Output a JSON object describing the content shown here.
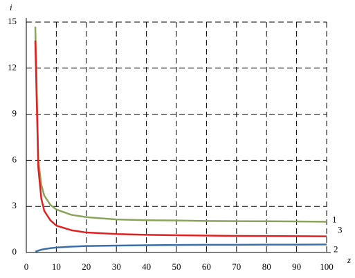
{
  "chart_data": {
    "type": "line",
    "x_label": "z",
    "y_label": "i",
    "x": [
      3,
      4,
      5,
      6,
      8,
      10,
      15,
      20,
      30,
      40,
      50,
      60,
      70,
      80,
      90,
      100
    ],
    "series": [
      {
        "name": "1",
        "color": "#8aa35a",
        "values": [
          14.7,
          6.0,
          4.4,
          3.7,
          3.1,
          2.8,
          2.45,
          2.3,
          2.15,
          2.1,
          2.08,
          2.05,
          2.04,
          2.03,
          2.02,
          2.0
        ]
      },
      {
        "name": "3",
        "color": "#e02020",
        "values": [
          13.8,
          5.5,
          3.5,
          2.7,
          2.1,
          1.75,
          1.45,
          1.3,
          1.2,
          1.15,
          1.12,
          1.1,
          1.08,
          1.07,
          1.06,
          1.05
        ]
      },
      {
        "name": "2",
        "color": "#3a6ea8",
        "values": [
          0.05,
          0.12,
          0.18,
          0.22,
          0.28,
          0.32,
          0.38,
          0.42,
          0.45,
          0.47,
          0.49,
          0.5,
          0.5,
          0.51,
          0.51,
          0.52
        ]
      }
    ],
    "xlim": [
      0,
      100
    ],
    "xticks": [
      0,
      10,
      20,
      30,
      40,
      50,
      60,
      70,
      80,
      90,
      100
    ],
    "ylim": [
      0,
      15
    ],
    "yticks": [
      0,
      3,
      6,
      9,
      12,
      15
    ],
    "grid": true
  }
}
